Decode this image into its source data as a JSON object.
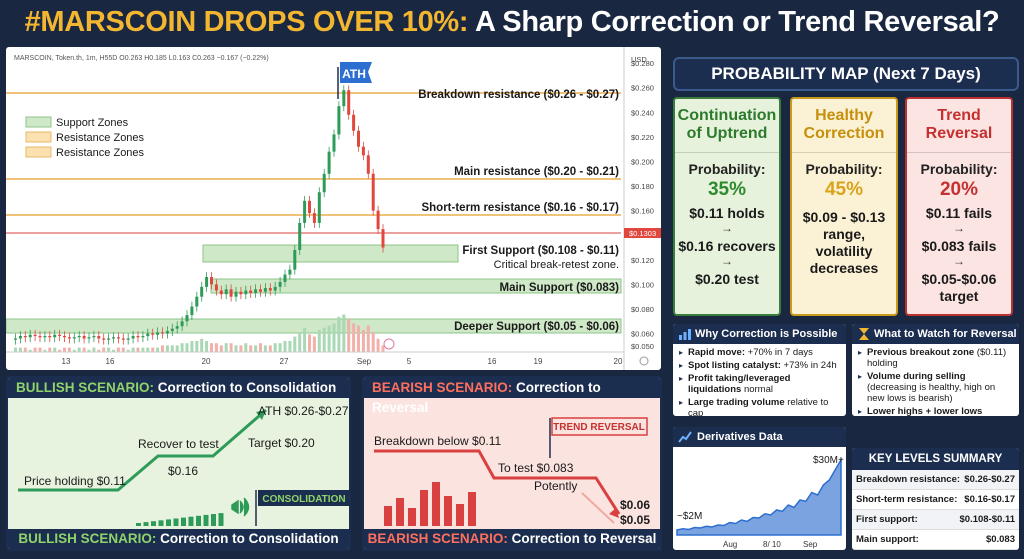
{
  "headline": {
    "part1": "#MARSCOIN DROPS OVER 10%:",
    "part2": "A Sharp Correction or Trend Reversal?"
  },
  "chart": {
    "ticker": "MARSCOIN, Token.th, 1m, H55D  O0.263  H0.185  L0.163  C0.263  −0.167 (−0.22%)",
    "currency": "USD",
    "price_badge": "$0.1303",
    "ath_label": "ATH",
    "legend": [
      "Support Zones",
      "Resistance Zones",
      "Resistance Zones"
    ],
    "x_ticks": [
      "13",
      "16",
      "20",
      "27",
      "Sep",
      "5",
      "16",
      "19",
      "20"
    ],
    "levels": {
      "breakdown": "Breakdown resistance ($0.26 - $0.27)",
      "main_res": "Main resistance ($0.20 - $0.21)",
      "short_res": "Short-term resistance ($0.16 - $0.17)",
      "first_sup": "First Support ($0.108 - $0.11)",
      "first_sup_note": "Critical break-retest zone.",
      "main_sup": "Main Support ($0.083)",
      "deep_sup": "Deeper Support ($0.05 - $0.06)"
    }
  },
  "chart_data": {
    "type": "candlestick",
    "ylabel": "USD",
    "y_ticks": [
      0.05,
      0.06,
      0.08,
      0.1,
      0.12,
      0.14,
      0.16,
      0.18,
      0.2,
      0.22,
      0.24,
      0.26,
      0.28
    ],
    "ylim": [
      0.045,
      0.285
    ],
    "current_price": 0.1303,
    "closes": [
      0.056,
      0.058,
      0.057,
      0.059,
      0.058,
      0.057,
      0.058,
      0.057,
      0.059,
      0.058,
      0.057,
      0.056,
      0.057,
      0.058,
      0.056,
      0.057,
      0.058,
      0.056,
      0.055,
      0.056,
      0.057,
      0.056,
      0.055,
      0.056,
      0.058,
      0.057,
      0.058,
      0.06,
      0.059,
      0.061,
      0.06,
      0.062,
      0.064,
      0.066,
      0.07,
      0.075,
      0.082,
      0.09,
      0.098,
      0.106,
      0.1,
      0.095,
      0.092,
      0.096,
      0.09,
      0.094,
      0.092,
      0.095,
      0.093,
      0.096,
      0.094,
      0.097,
      0.095,
      0.098,
      0.102,
      0.108,
      0.112,
      0.128,
      0.15,
      0.168,
      0.158,
      0.15,
      0.175,
      0.19,
      0.208,
      0.222,
      0.245,
      0.258,
      0.238,
      0.225,
      0.212,
      0.205,
      0.19,
      0.16,
      0.145,
      0.13
    ],
    "volume": [
      2,
      2,
      2,
      1,
      2,
      2,
      1,
      2,
      2,
      1,
      2,
      2,
      1,
      2,
      2,
      1,
      2,
      1,
      2,
      2,
      1,
      2,
      2,
      1,
      2,
      2,
      2,
      2,
      2,
      2,
      3,
      3,
      3,
      3,
      4,
      4,
      5,
      5,
      6,
      5,
      4,
      4,
      3,
      4,
      4,
      3,
      3,
      4,
      3,
      3,
      4,
      3,
      3,
      4,
      4,
      5,
      5,
      7,
      9,
      11,
      8,
      7,
      10,
      11,
      12,
      13,
      16,
      17,
      15,
      13,
      12,
      10,
      12,
      9,
      6,
      3
    ]
  },
  "probability": {
    "header": "PROBABILITY MAP (Next 7 Days)",
    "cards": [
      {
        "title": "Continuation of Uptrend",
        "label": "Probability:",
        "value": "35%",
        "lines": [
          "$0.11 holds",
          "$0.16 recovers",
          "$0.20 test"
        ]
      },
      {
        "title": "Healthy Correction",
        "label": "Probability:",
        "value": "45%",
        "lines": [
          "$0.09 - $0.13",
          "range,",
          "volatility",
          "decreases"
        ]
      },
      {
        "title": "Trend Reversal",
        "label": "Probability:",
        "value": "20%",
        "lines": [
          "$0.11 fails",
          "$0.083 fails",
          "$0.05-$0.06",
          "target"
        ]
      }
    ]
  },
  "why": {
    "title": "Why Correction is Possible",
    "items": [
      {
        "b": "Rapid move:",
        "t": " +70% in 7 days"
      },
      {
        "b": "Spot listing catalyst:",
        "t": " +73% in 24h"
      },
      {
        "b": "Profit taking/leveraged liquidations",
        "t": " normal"
      },
      {
        "b": "Large trading volume",
        "t": " relative to cap"
      }
    ]
  },
  "watch": {
    "title": "What to Watch for Reversal",
    "items": [
      {
        "b": "Previous breakout zone",
        "t": " ($0.11) holding"
      },
      {
        "b": "Volume during selling",
        "t": " (decreasing is healthy, high on new lows is bearish)"
      },
      {
        "b": "Lower highs + lower lows",
        "t": ""
      }
    ]
  },
  "derivatives": {
    "title": "Derivatives Data",
    "start_label": "~$2M",
    "end_label": "$30M+",
    "x_ticks": [
      "Aug",
      "8/ 10",
      "Sep"
    ],
    "values": [
      2,
      2.5,
      2.2,
      3,
      2.8,
      3.5,
      3.2,
      4,
      3.8,
      5,
      4.6,
      6,
      5.5,
      7,
      6.8,
      8.5,
      8,
      10,
      9.5,
      12,
      11,
      14,
      13.5,
      17,
      16,
      20,
      22,
      26,
      30
    ]
  },
  "key_levels": {
    "title": "KEY LEVELS SUMMARY",
    "rows": [
      {
        "label": "Breakdown resistance:",
        "value": "$0.26-$0.27"
      },
      {
        "label": "Short-term resistance:",
        "value": "$0.16-$0.17"
      },
      {
        "label": "First support:",
        "value": "$0.108-$0.11"
      },
      {
        "label": "Main support:",
        "value": "$0.083"
      }
    ]
  },
  "bullish": {
    "head_accent": "BULLISH SCENARIO:",
    "head_rest": " Correction to Consolidation",
    "steps": [
      "Price holding $0.11",
      "Recover to test",
      "$0.16",
      "Target $0.20",
      "ATH $0.26-$0.27"
    ],
    "flag": "CONSOLIDATION",
    "foot_accent": "BULLISH SCENARIO:",
    "foot_rest": " Correction to Consolidation"
  },
  "bearish": {
    "head_accent": "BEARISH SCENARIO:",
    "head_rest": " Correction to Reversal",
    "steps": [
      "Breakdown below $0.11",
      "To test $0.083",
      "Potently",
      "$0.06",
      "$0.05"
    ],
    "flag": "TREND REVERSAL",
    "foot_accent": "BEARISH SCENARIO:",
    "foot_rest": " Correction to Reversal"
  },
  "colors": {
    "navy": "#1c2e4f",
    "green": "#2e9b58",
    "red": "#e0483e",
    "gold": "#f2b630"
  }
}
